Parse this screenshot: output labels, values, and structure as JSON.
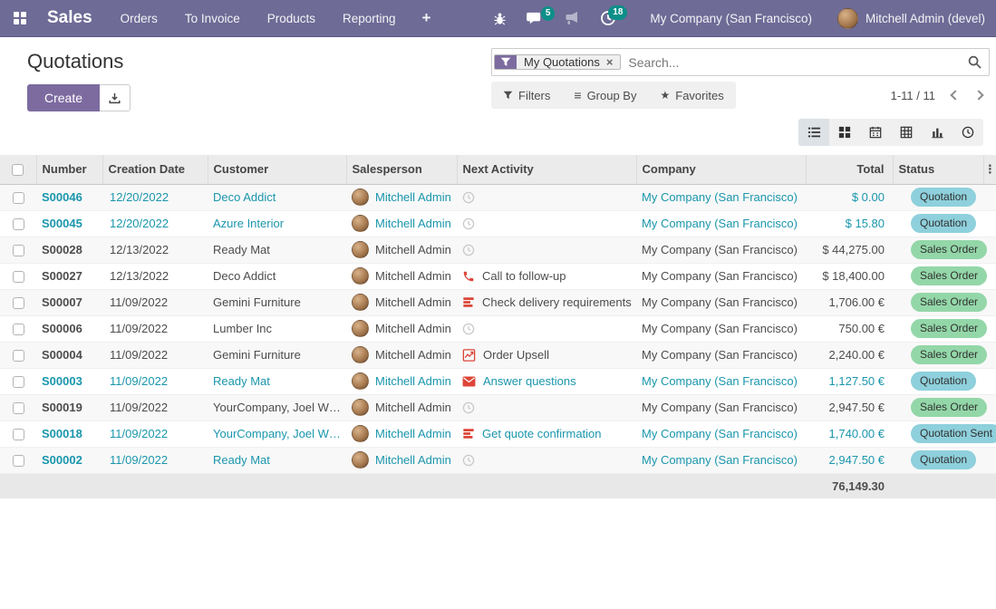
{
  "colors": {
    "navbar": "#6e6b96",
    "primary": "#7d6ba0",
    "notification_badge": "#0c8f88",
    "info_text": "#1a96ac",
    "quotation_pill": "#8ed0dc",
    "sales_order_pill": "#93d7a8",
    "danger": "#dc4538"
  },
  "nav": {
    "brand": "Sales",
    "items": [
      {
        "label": "Orders"
      },
      {
        "label": "To Invoice"
      },
      {
        "label": "Products"
      },
      {
        "label": "Reporting"
      }
    ],
    "plus_label": "+",
    "systray": {
      "messages_count": "5",
      "activities_count": "18",
      "company": "My Company (San Francisco)",
      "user": "Mitchell Admin (devel)"
    }
  },
  "page": {
    "title": "Quotations",
    "create_label": "Create"
  },
  "search": {
    "facet": "My Quotations",
    "facet_remove": "×",
    "placeholder": "Search..."
  },
  "controls": {
    "filters": "Filters",
    "group_by": "Group By",
    "favorites": "Favorites",
    "pager": "1-11 / 11",
    "menu_dots": "⋮"
  },
  "table": {
    "headers": [
      "Number",
      "Creation Date",
      "Customer",
      "Salesperson",
      "Next Activity",
      "Company",
      "Total",
      "Status"
    ],
    "rows": [
      {
        "number": "S00046",
        "creation_date": "12/20/2022",
        "customer": "Deco Addict",
        "salesperson": "Mitchell Admin",
        "activity_icon": "clock",
        "activity_label": "",
        "company": "My Company (San Francisco)",
        "total": "$ 0.00",
        "status": "Quotation",
        "status_type": "quotation",
        "muted": true
      },
      {
        "number": "S00045",
        "creation_date": "12/20/2022",
        "customer": "Azure Interior",
        "salesperson": "Mitchell Admin",
        "activity_icon": "clock",
        "activity_label": "",
        "company": "My Company (San Francisco)",
        "total": "$ 15.80",
        "status": "Quotation",
        "status_type": "quotation",
        "muted": true
      },
      {
        "number": "S00028",
        "creation_date": "12/13/2022",
        "customer": "Ready Mat",
        "salesperson": "Mitchell Admin",
        "activity_icon": "clock",
        "activity_label": "",
        "company": "My Company (San Francisco)",
        "total": "$ 44,275.00",
        "status": "Sales Order",
        "status_type": "sale",
        "muted": false
      },
      {
        "number": "S00027",
        "creation_date": "12/13/2022",
        "customer": "Deco Addict",
        "salesperson": "Mitchell Admin",
        "activity_icon": "phone",
        "activity_label": "Call to follow-up",
        "company": "My Company (San Francisco)",
        "total": "$ 18,400.00",
        "status": "Sales Order",
        "status_type": "sale",
        "muted": false
      },
      {
        "number": "S00007",
        "creation_date": "11/09/2022",
        "customer": "Gemini Furniture",
        "salesperson": "Mitchell Admin",
        "activity_icon": "checklist",
        "activity_label": "Check delivery requirements",
        "company": "My Company (San Francisco)",
        "total": "1,706.00 €",
        "status": "Sales Order",
        "status_type": "sale",
        "muted": false
      },
      {
        "number": "S00006",
        "creation_date": "11/09/2022",
        "customer": "Lumber Inc",
        "salesperson": "Mitchell Admin",
        "activity_icon": "clock",
        "activity_label": "",
        "company": "My Company (San Francisco)",
        "total": "750.00 €",
        "status": "Sales Order",
        "status_type": "sale",
        "muted": false
      },
      {
        "number": "S00004",
        "creation_date": "11/09/2022",
        "customer": "Gemini Furniture",
        "salesperson": "Mitchell Admin",
        "activity_icon": "upsell",
        "activity_label": "Order Upsell",
        "company": "My Company (San Francisco)",
        "total": "2,240.00 €",
        "status": "Sales Order",
        "status_type": "sale",
        "muted": false
      },
      {
        "number": "S00003",
        "creation_date": "11/09/2022",
        "customer": "Ready Mat",
        "salesperson": "Mitchell Admin",
        "activity_icon": "email",
        "activity_label": "Answer questions",
        "company": "My Company (San Francisco)",
        "total": "1,127.50 €",
        "status": "Quotation",
        "status_type": "quotation",
        "muted": true
      },
      {
        "number": "S00019",
        "creation_date": "11/09/2022",
        "customer": "YourCompany, Joel Willis",
        "salesperson": "Mitchell Admin",
        "activity_icon": "clock",
        "activity_label": "",
        "company": "My Company (San Francisco)",
        "total": "2,947.50 €",
        "status": "Sales Order",
        "status_type": "sale",
        "muted": false
      },
      {
        "number": "S00018",
        "creation_date": "11/09/2022",
        "customer": "YourCompany, Joel Willis",
        "salesperson": "Mitchell Admin",
        "activity_icon": "checklist",
        "activity_label": "Get quote confirmation",
        "company": "My Company (San Francisco)",
        "total": "1,740.00 €",
        "status": "Quotation Sent",
        "status_type": "quotation",
        "muted": true
      },
      {
        "number": "S00002",
        "creation_date": "11/09/2022",
        "customer": "Ready Mat",
        "salesperson": "Mitchell Admin",
        "activity_icon": "clock",
        "activity_label": "",
        "company": "My Company (San Francisco)",
        "total": "2,947.50 €",
        "status": "Quotation",
        "status_type": "quotation",
        "muted": true
      }
    ],
    "footer_total": "76,149.30"
  }
}
